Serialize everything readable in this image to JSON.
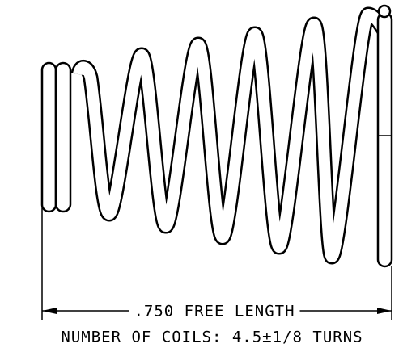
{
  "dimension": {
    "label": ".750 FREE LENGTH"
  },
  "note": {
    "text": "NUMBER OF COILS: 4.5±1/8 TURNS"
  }
}
